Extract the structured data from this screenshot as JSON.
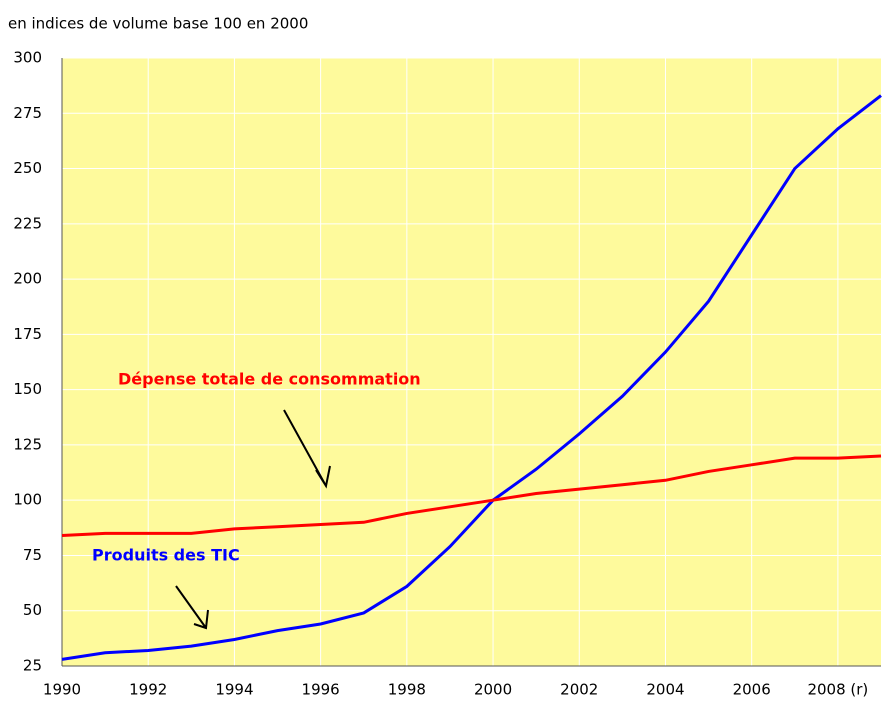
{
  "chart_data": {
    "type": "line",
    "subtitle": "en indices de volume base 100 en 2000",
    "x": [
      1990,
      1991,
      1992,
      1993,
      1994,
      1995,
      1996,
      1997,
      1998,
      1999,
      2000,
      2001,
      2002,
      2003,
      2004,
      2005,
      2006,
      2007,
      2008,
      2009
    ],
    "series": [
      {
        "name": "Produits des TIC",
        "color": "#0000ff",
        "values": [
          28,
          31,
          32,
          34,
          37,
          41,
          44,
          49,
          61,
          79,
          100,
          114,
          130,
          147,
          167,
          190,
          220,
          250,
          268,
          283
        ]
      },
      {
        "name": "Dépense totale de consommation",
        "color": "#ff0000",
        "values": [
          84,
          85,
          85,
          85,
          87,
          88,
          89,
          90,
          94,
          97,
          100,
          103,
          105,
          107,
          109,
          113,
          116,
          119,
          119,
          120
        ]
      }
    ],
    "xlim": [
      1990,
      2009
    ],
    "xticks": [
      1990,
      1992,
      1994,
      1996,
      1998,
      2000,
      2002,
      2004,
      2006,
      {
        "value": 2008,
        "label": "2008 (r)"
      }
    ],
    "ylim": [
      25,
      300
    ],
    "yticks": [
      25,
      50,
      75,
      100,
      125,
      150,
      175,
      200,
      225,
      250,
      275,
      300
    ],
    "grid": true,
    "background": "#fefa9c"
  }
}
